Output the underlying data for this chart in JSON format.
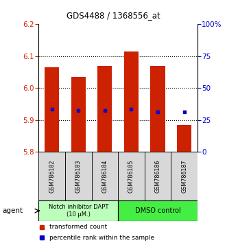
{
  "title": "GDS4488 / 1368556_at",
  "samples": [
    "GSM786182",
    "GSM786183",
    "GSM786184",
    "GSM786185",
    "GSM786186",
    "GSM786187"
  ],
  "bar_bottoms": [
    5.8,
    5.8,
    5.8,
    5.8,
    5.8,
    5.8
  ],
  "bar_tops": [
    6.065,
    6.035,
    6.07,
    6.115,
    6.07,
    5.885
  ],
  "percentile_values": [
    5.935,
    5.93,
    5.93,
    5.935,
    5.925,
    5.925
  ],
  "ylim": [
    5.8,
    6.2
  ],
  "yticks_left": [
    5.8,
    5.9,
    6.0,
    6.1,
    6.2
  ],
  "yticks_right_labels": [
    "0",
    "25",
    "50",
    "75",
    "100%"
  ],
  "yticks_right_vals": [
    5.8,
    5.9,
    6.0,
    6.1,
    6.2
  ],
  "bar_color": "#cc2200",
  "percentile_color": "#0000cc",
  "group1_label": "Notch inhibitor DAPT\n(10 μM.)",
  "group2_label": "DMSO control",
  "group1_color": "#bbffbb",
  "group2_color": "#44ee44",
  "group1_indices": [
    0,
    1,
    2
  ],
  "group2_indices": [
    3,
    4,
    5
  ],
  "legend_bar_label": "transformed count",
  "legend_pct_label": "percentile rank within the sample",
  "agent_label": "agent",
  "bar_width": 0.55,
  "grid_linestyle": "dotted"
}
